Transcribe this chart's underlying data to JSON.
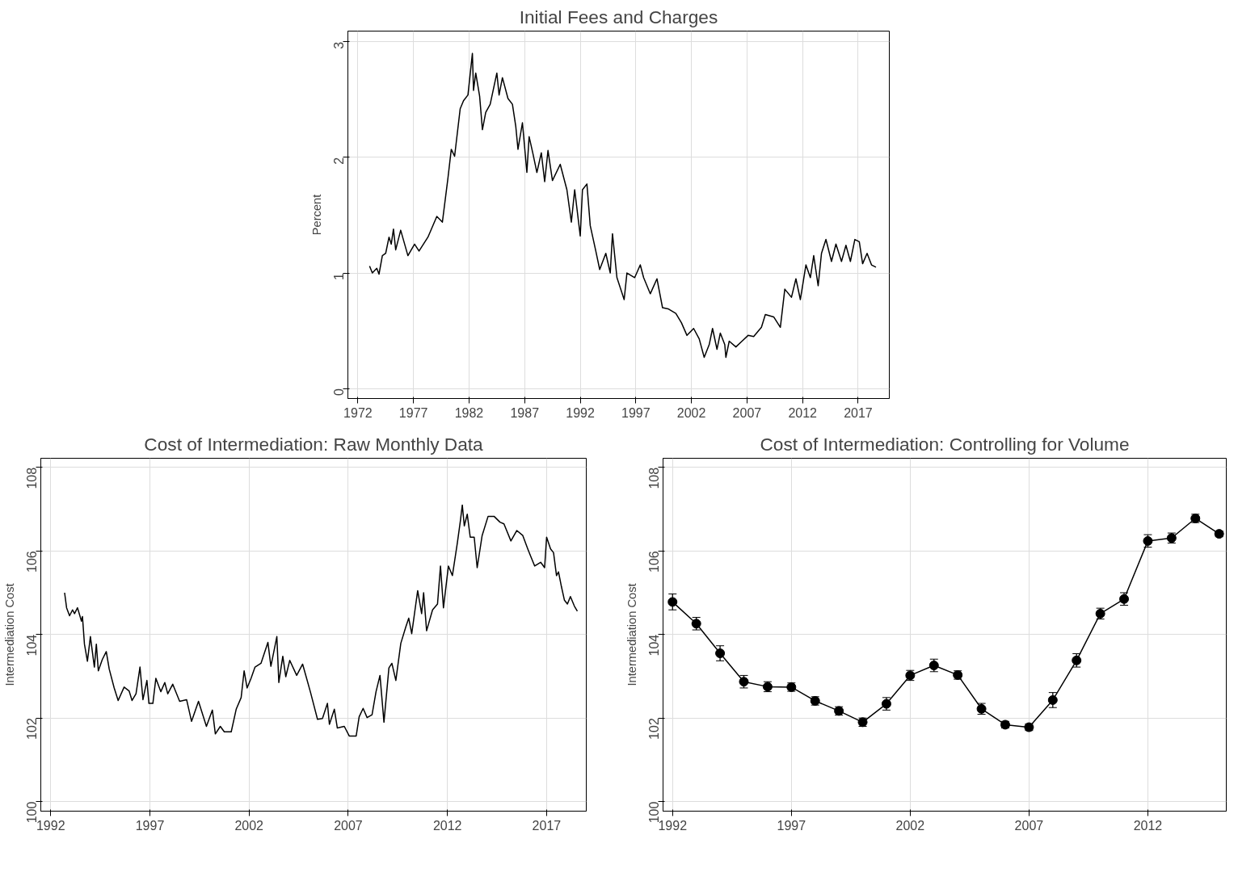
{
  "chart_data": [
    {
      "type": "line",
      "title": "Initial Fees and Charges",
      "ylabel": "Percent",
      "grid": true,
      "xlim": [
        1971.1,
        2019.8
      ],
      "ylim": [
        -0.086,
        3.093
      ],
      "xticks": [
        1972,
        1977,
        1982,
        1987,
        1992,
        1997,
        2002,
        2007,
        2012,
        2017
      ],
      "yticks": [
        0,
        1,
        2,
        3
      ],
      "series": [
        {
          "color": "#000000",
          "x": [
            1973.05,
            1973.3,
            1973.7,
            1973.9,
            1974.2,
            1974.5,
            1974.8,
            1975.0,
            1975.2,
            1975.4,
            1975.85,
            1976.5,
            1977.1,
            1977.5,
            1978.3,
            1979.1,
            1979.6,
            1980.1,
            1980.4,
            1980.7,
            1981.2,
            1981.5,
            1981.9,
            1982.3,
            1982.4,
            1982.6,
            1982.95,
            1983.2,
            1983.5,
            1983.9,
            1984.5,
            1984.7,
            1985.0,
            1985.5,
            1985.9,
            1986.2,
            1986.4,
            1986.8,
            1987.2,
            1987.4,
            1987.75,
            1988.1,
            1988.5,
            1988.8,
            1989.1,
            1989.5,
            1990.2,
            1990.8,
            1991.2,
            1991.5,
            1992.0,
            1992.2,
            1992.6,
            1992.9,
            1993.4,
            1993.75,
            1994.3,
            1994.7,
            1994.9,
            1995.3,
            1995.95,
            1996.2,
            1996.9,
            1997.4,
            1997.7,
            1998.3,
            1998.9,
            1999.4,
            1999.9,
            2000.6,
            2001.1,
            2001.6,
            2002.2,
            2002.7,
            2003.15,
            2003.6,
            2003.9,
            2004.3,
            2004.6,
            2005.0,
            2005.1,
            2005.4,
            2006.0,
            2006.55,
            2007.1,
            2007.6,
            2008.3,
            2008.65,
            2009.4,
            2010.0,
            2010.4,
            2011.0,
            2011.4,
            2011.8,
            2012.3,
            2012.7,
            2013.0,
            2013.4,
            2013.7,
            2014.1,
            2014.6,
            2015.0,
            2015.5,
            2015.9,
            2016.3,
            2016.7,
            2017.1,
            2017.4,
            2017.8,
            2018.2,
            2018.6
          ],
          "values": [
            1.06,
            1.0,
            1.04,
            0.99,
            1.15,
            1.17,
            1.31,
            1.25,
            1.38,
            1.2,
            1.37,
            1.15,
            1.25,
            1.19,
            1.31,
            1.49,
            1.44,
            1.82,
            2.07,
            2.01,
            2.42,
            2.49,
            2.54,
            2.9,
            2.58,
            2.73,
            2.53,
            2.24,
            2.39,
            2.46,
            2.73,
            2.54,
            2.69,
            2.51,
            2.46,
            2.27,
            2.07,
            2.3,
            1.87,
            2.18,
            2.03,
            1.87,
            2.04,
            1.79,
            2.06,
            1.8,
            1.94,
            1.72,
            1.44,
            1.72,
            1.32,
            1.72,
            1.77,
            1.41,
            1.19,
            1.03,
            1.17,
            1.0,
            1.34,
            0.96,
            0.77,
            1.0,
            0.96,
            1.07,
            0.96,
            0.82,
            0.95,
            0.7,
            0.69,
            0.65,
            0.57,
            0.46,
            0.52,
            0.43,
            0.27,
            0.38,
            0.52,
            0.34,
            0.48,
            0.38,
            0.27,
            0.41,
            0.36,
            0.41,
            0.46,
            0.45,
            0.53,
            0.64,
            0.62,
            0.53,
            0.86,
            0.79,
            0.95,
            0.77,
            1.07,
            0.96,
            1.15,
            0.89,
            1.17,
            1.29,
            1.1,
            1.25,
            1.1,
            1.24,
            1.1,
            1.29,
            1.27,
            1.08,
            1.17,
            1.07,
            1.05
          ]
        }
      ]
    },
    {
      "type": "line",
      "title": "Cost of Intermediation: Raw Monthly Data",
      "ylabel": "Intermediation Cost",
      "grid": true,
      "xlim": [
        1991.5,
        2019.0
      ],
      "ylim": [
        99.77,
        108.22
      ],
      "xticks": [
        1992,
        1997,
        2002,
        2007,
        2012,
        2017
      ],
      "yticks": [
        100,
        102,
        104,
        106,
        108
      ],
      "series": [
        {
          "color": "#000000",
          "x": [
            1992.7,
            1992.8,
            1992.95,
            1993.1,
            1993.2,
            1993.35,
            1993.55,
            1993.6,
            1993.7,
            1993.85,
            1994.0,
            1994.2,
            1994.3,
            1994.4,
            1994.6,
            1994.8,
            1994.95,
            1995.2,
            1995.4,
            1995.7,
            1995.95,
            1996.1,
            1996.3,
            1996.5,
            1996.65,
            1996.85,
            1996.95,
            1997.15,
            1997.3,
            1997.55,
            1997.75,
            1997.9,
            1998.15,
            1998.5,
            1998.85,
            1999.1,
            1999.45,
            1999.85,
            2000.15,
            2000.3,
            2000.55,
            2000.75,
            2001.1,
            2001.35,
            2001.6,
            2001.75,
            2001.9,
            2002.1,
            2002.3,
            2002.6,
            2002.95,
            2003.1,
            2003.4,
            2003.5,
            2003.7,
            2003.85,
            2004.05,
            2004.4,
            2004.7,
            2004.9,
            2005.1,
            2005.45,
            2005.7,
            2005.95,
            2006.05,
            2006.3,
            2006.45,
            2006.8,
            2007.05,
            2007.4,
            2007.55,
            2007.75,
            2007.95,
            2008.2,
            2008.4,
            2008.6,
            2008.8,
            2009.05,
            2009.2,
            2009.4,
            2009.65,
            2009.9,
            2010.05,
            2010.2,
            2010.5,
            2010.7,
            2010.8,
            2010.95,
            2011.25,
            2011.5,
            2011.65,
            2011.8,
            2012.05,
            2012.25,
            2012.5,
            2012.65,
            2012.75,
            2012.85,
            2013.0,
            2013.15,
            2013.35,
            2013.5,
            2013.75,
            2014.05,
            2014.35,
            2014.65,
            2014.85,
            2015.2,
            2015.5,
            2015.8,
            2016.05,
            2016.2,
            2016.4,
            2016.7,
            2016.9,
            2017.0,
            2017.2,
            2017.35,
            2017.5,
            2017.6,
            2017.75,
            2017.9,
            2018.05,
            2018.2,
            2018.4,
            2018.55
          ],
          "values": [
            105.0,
            104.64,
            104.45,
            104.59,
            104.5,
            104.64,
            104.32,
            104.43,
            103.77,
            103.36,
            103.95,
            103.22,
            103.77,
            103.13,
            103.4,
            103.59,
            103.17,
            102.72,
            102.42,
            102.74,
            102.65,
            102.42,
            102.58,
            103.22,
            102.44,
            102.9,
            102.35,
            102.35,
            102.95,
            102.63,
            102.85,
            102.58,
            102.81,
            102.4,
            102.44,
            101.92,
            102.4,
            101.8,
            102.19,
            101.62,
            101.8,
            101.67,
            101.67,
            102.21,
            102.49,
            103.13,
            102.72,
            102.95,
            103.22,
            103.31,
            103.81,
            103.24,
            103.95,
            102.85,
            103.48,
            102.99,
            103.38,
            103.02,
            103.29,
            102.95,
            102.61,
            101.97,
            101.99,
            102.35,
            101.85,
            102.21,
            101.76,
            101.8,
            101.57,
            101.57,
            102.03,
            102.23,
            102.01,
            102.08,
            102.63,
            103.02,
            101.9,
            103.2,
            103.31,
            102.9,
            103.79,
            104.18,
            104.39,
            104.02,
            105.05,
            104.5,
            105.0,
            104.09,
            104.59,
            104.73,
            105.64,
            104.64,
            105.64,
            105.41,
            106.19,
            106.71,
            107.1,
            106.6,
            106.88,
            106.33,
            106.33,
            105.6,
            106.37,
            106.83,
            106.83,
            106.69,
            106.65,
            106.24,
            106.49,
            106.37,
            106.05,
            105.87,
            105.64,
            105.73,
            105.6,
            106.33,
            106.05,
            105.96,
            105.41,
            105.5,
            105.14,
            104.82,
            104.73,
            104.91,
            104.68,
            104.56
          ]
        }
      ]
    },
    {
      "type": "line",
      "title": "Cost of Intermediation: Controlling for Volume",
      "ylabel": "Intermediation Cost",
      "grid": true,
      "marker": "circle",
      "xlim": [
        1991.6,
        2015.3
      ],
      "ylim": [
        99.77,
        108.22
      ],
      "xticks": [
        1992,
        1997,
        2002,
        2007,
        2012
      ],
      "yticks": [
        100,
        102,
        104,
        106,
        108
      ],
      "series": [
        {
          "color": "#000000",
          "x": [
            1992,
            1993,
            1994,
            1995,
            1996,
            1997,
            1998,
            1999,
            2000,
            2001,
            2002,
            2003,
            2004,
            2005,
            2006,
            2007,
            2008,
            2009,
            2010,
            2011,
            2012,
            2013,
            2014,
            2015
          ],
          "values": [
            104.78,
            104.26,
            103.55,
            102.87,
            102.75,
            102.74,
            102.41,
            102.17,
            101.9,
            102.34,
            103.02,
            103.26,
            103.03,
            102.22,
            101.84,
            101.78,
            102.43,
            103.38,
            104.5,
            104.85,
            106.24,
            106.31,
            106.78,
            106.41
          ],
          "errors": [
            0.19,
            0.15,
            0.18,
            0.15,
            0.12,
            0.1,
            0.1,
            0.1,
            0.1,
            0.15,
            0.12,
            0.15,
            0.1,
            0.13,
            0.08,
            0.08,
            0.18,
            0.16,
            0.13,
            0.15,
            0.15,
            0.12,
            0.1,
            0.07
          ]
        }
      ]
    }
  ]
}
